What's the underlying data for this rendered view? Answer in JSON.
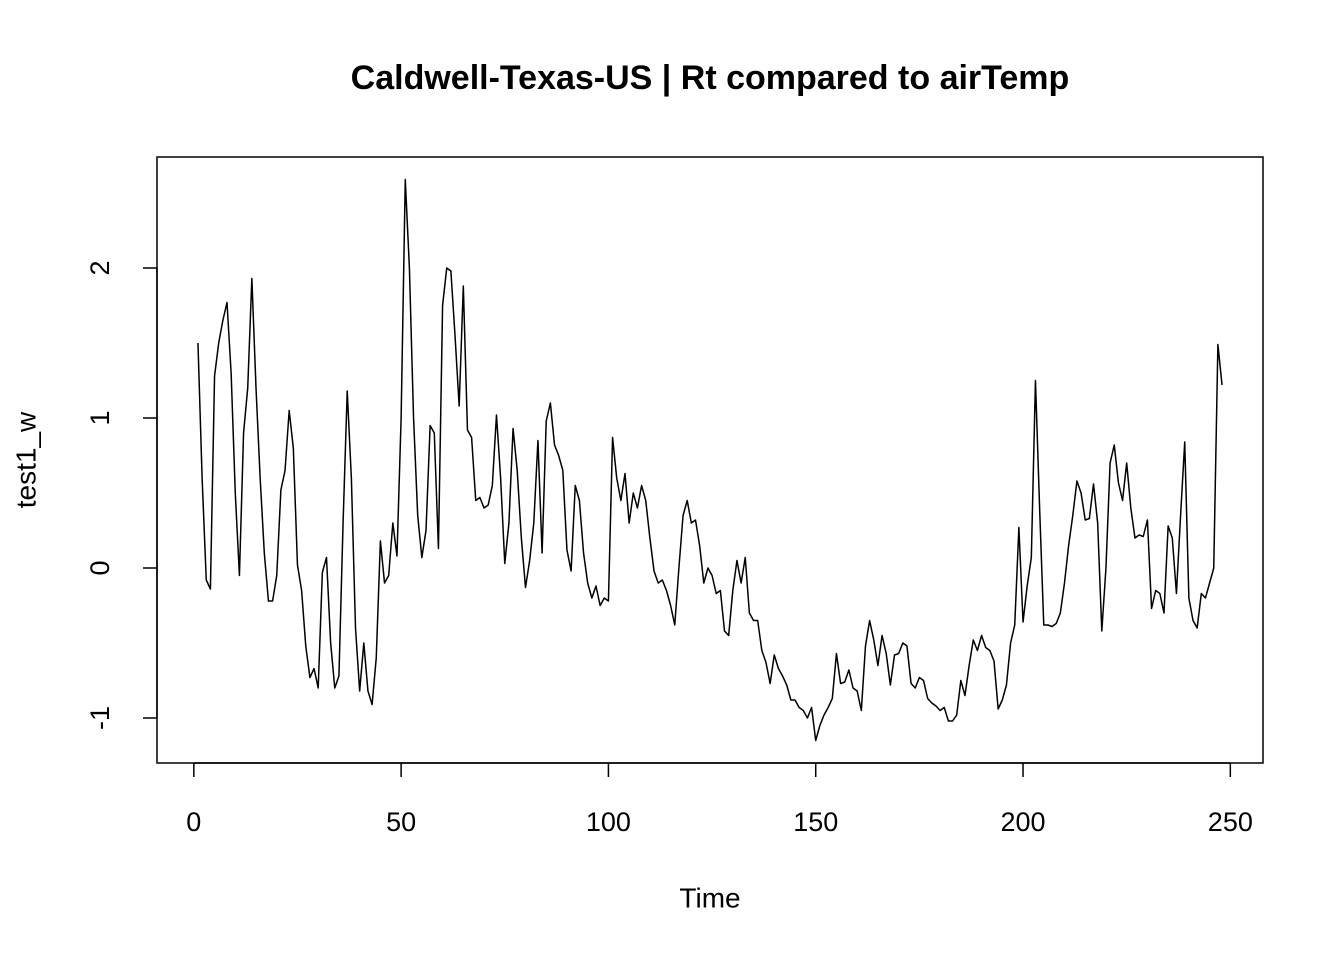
{
  "chart_data": {
    "type": "line",
    "title": "Caldwell-Texas-US | Rt compared to airTemp",
    "x_label": "Time",
    "y_label": "test1_w",
    "x": [
      1,
      2,
      3,
      4,
      5,
      6,
      7,
      8,
      9,
      10,
      11,
      12,
      13,
      14,
      15,
      16,
      17,
      18,
      19,
      20,
      21,
      22,
      23,
      24,
      25,
      26,
      27,
      28,
      29,
      30,
      31,
      32,
      33,
      34,
      35,
      36,
      37,
      38,
      39,
      40,
      41,
      42,
      43,
      44,
      45,
      46,
      47,
      48,
      49,
      50,
      51,
      52,
      53,
      54,
      55,
      56,
      57,
      58,
      59,
      60,
      61,
      62,
      63,
      64,
      65,
      66,
      67,
      68,
      69,
      70,
      71,
      72,
      73,
      74,
      75,
      76,
      77,
      78,
      79,
      80,
      81,
      82,
      83,
      84,
      85,
      86,
      87,
      88,
      89,
      90,
      91,
      92,
      93,
      94,
      95,
      96,
      97,
      98,
      99,
      100,
      101,
      102,
      103,
      104,
      105,
      106,
      107,
      108,
      109,
      110,
      111,
      112,
      113,
      114,
      115,
      116,
      117,
      118,
      119,
      120,
      121,
      122,
      123,
      124,
      125,
      126,
      127,
      128,
      129,
      130,
      131,
      132,
      133,
      134,
      135,
      136,
      137,
      138,
      139,
      140,
      141,
      142,
      143,
      144,
      145,
      146,
      147,
      148,
      149,
      150,
      151,
      152,
      153,
      154,
      155,
      156,
      157,
      158,
      159,
      160,
      161,
      162,
      163,
      164,
      165,
      166,
      167,
      168,
      169,
      170,
      171,
      172,
      173,
      174,
      175,
      176,
      177,
      178,
      179,
      180,
      181,
      182,
      183,
      184,
      185,
      186,
      187,
      188,
      189,
      190,
      191,
      192,
      193,
      194,
      195,
      196,
      197,
      198,
      199,
      200,
      201,
      202,
      203,
      204,
      205,
      206,
      207,
      208,
      209,
      210,
      211,
      212,
      213,
      214,
      215,
      216,
      217,
      218,
      219,
      220,
      221,
      222,
      223,
      224,
      225,
      226,
      227,
      228,
      229,
      230,
      231,
      232,
      233,
      234,
      235,
      236,
      237,
      238,
      239,
      240,
      241,
      242,
      243,
      244,
      245,
      246,
      247,
      248
    ],
    "series": [
      {
        "name": "test1_w",
        "color": "#000000",
        "values": [
          1.5,
          0.6,
          -0.08,
          -0.14,
          1.28,
          1.5,
          1.65,
          1.77,
          1.3,
          0.5,
          -0.05,
          0.9,
          1.2,
          1.93,
          1.2,
          0.6,
          0.1,
          -0.22,
          -0.22,
          -0.05,
          0.52,
          0.65,
          1.05,
          0.8,
          0.02,
          -0.15,
          -0.52,
          -0.73,
          -0.67,
          -0.8,
          -0.03,
          0.07,
          -0.5,
          -0.8,
          -0.72,
          0.3,
          1.18,
          0.6,
          -0.4,
          -0.82,
          -0.5,
          -0.82,
          -0.91,
          -0.6,
          0.18,
          -0.1,
          -0.05,
          0.3,
          0.08,
          1.0,
          2.59,
          2.0,
          1.0,
          0.35,
          0.07,
          0.25,
          0.95,
          0.9,
          0.13,
          1.75,
          2.0,
          1.98,
          1.55,
          1.08,
          1.88,
          0.92,
          0.87,
          0.45,
          0.47,
          0.4,
          0.42,
          0.55,
          1.02,
          0.6,
          0.03,
          0.3,
          0.93,
          0.65,
          0.2,
          -0.13,
          0.05,
          0.3,
          0.85,
          0.1,
          0.98,
          1.1,
          0.82,
          0.75,
          0.65,
          0.12,
          -0.02,
          0.55,
          0.45,
          0.1,
          -0.1,
          -0.2,
          -0.12,
          -0.25,
          -0.2,
          -0.22,
          0.87,
          0.6,
          0.45,
          0.63,
          0.3,
          0.5,
          0.4,
          0.55,
          0.45,
          0.2,
          -0.02,
          -0.1,
          -0.08,
          -0.15,
          -0.25,
          -0.38,
          0.0,
          0.35,
          0.45,
          0.3,
          0.32,
          0.15,
          -0.1,
          0.0,
          -0.05,
          -0.17,
          -0.15,
          -0.42,
          -0.45,
          -0.15,
          0.05,
          -0.1,
          0.07,
          -0.3,
          -0.35,
          -0.35,
          -0.55,
          -0.63,
          -0.77,
          -0.58,
          -0.67,
          -0.72,
          -0.78,
          -0.88,
          -0.88,
          -0.93,
          -0.95,
          -1.0,
          -0.93,
          -1.15,
          -1.05,
          -0.98,
          -0.93,
          -0.87,
          -0.57,
          -0.77,
          -0.76,
          -0.68,
          -0.8,
          -0.82,
          -0.95,
          -0.52,
          -0.35,
          -0.48,
          -0.65,
          -0.45,
          -0.57,
          -0.78,
          -0.58,
          -0.57,
          -0.5,
          -0.52,
          -0.77,
          -0.8,
          -0.73,
          -0.75,
          -0.87,
          -0.9,
          -0.92,
          -0.95,
          -0.93,
          -1.02,
          -1.02,
          -0.98,
          -0.75,
          -0.85,
          -0.65,
          -0.48,
          -0.55,
          -0.45,
          -0.53,
          -0.55,
          -0.62,
          -0.94,
          -0.88,
          -0.78,
          -0.5,
          -0.38,
          0.27,
          -0.36,
          -0.12,
          0.07,
          1.25,
          0.4,
          -0.38,
          -0.38,
          -0.39,
          -0.37,
          -0.3,
          -0.1,
          0.15,
          0.35,
          0.58,
          0.5,
          0.32,
          0.33,
          0.56,
          0.3,
          -0.42,
          0.0,
          0.7,
          0.82,
          0.57,
          0.45,
          0.7,
          0.4,
          0.2,
          0.22,
          0.21,
          0.32,
          -0.27,
          -0.15,
          -0.17,
          -0.3,
          0.28,
          0.2,
          -0.17,
          0.35,
          0.84,
          -0.2,
          -0.35,
          -0.4,
          -0.17,
          -0.2,
          -0.1,
          0.0,
          1.49,
          1.22
        ]
      }
    ],
    "xlim": [
      -8.88,
      257.88
    ],
    "ylim": [
      -1.3,
      2.74
    ],
    "xticks": [
      0,
      50,
      100,
      150,
      200,
      250
    ],
    "yticks": [
      -1,
      0,
      1,
      2
    ],
    "grid": false
  }
}
